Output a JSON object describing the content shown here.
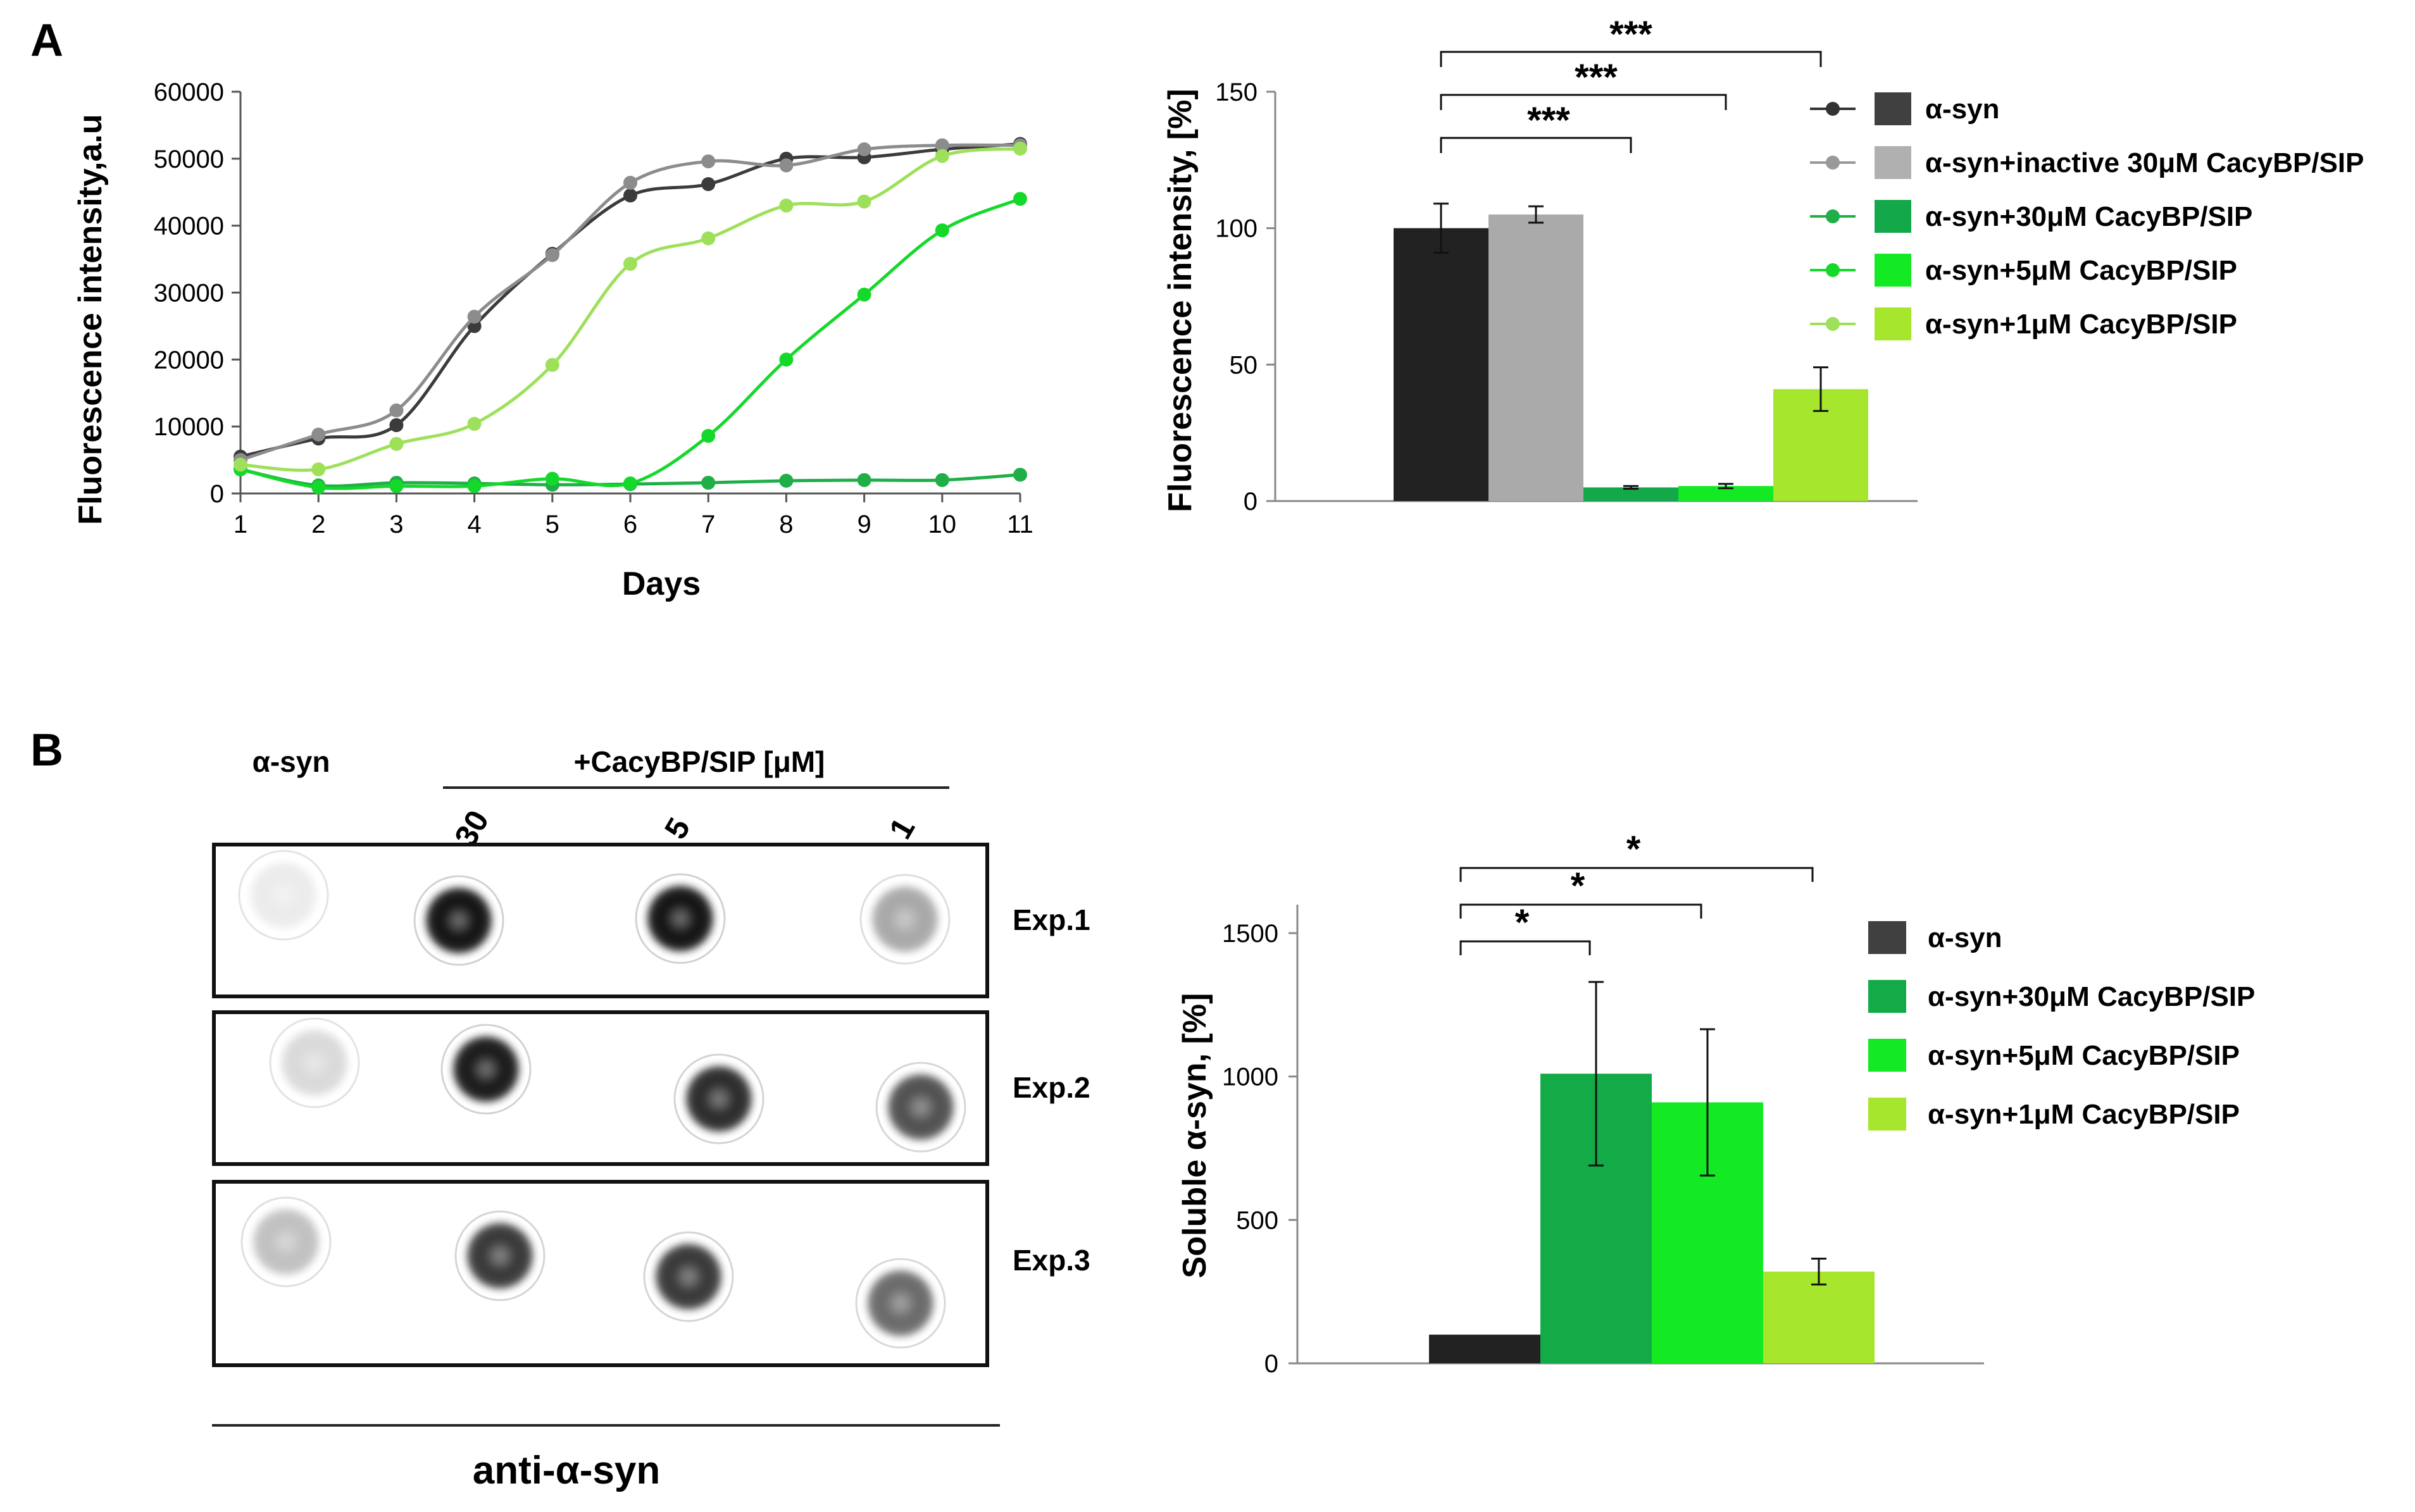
{
  "panels": {
    "a": {
      "label": "A"
    },
    "b": {
      "label": "B"
    }
  },
  "chart_data": [
    {
      "type": "line",
      "xlabel": "Days",
      "ylabel": "Fluorescence intensity,a.u",
      "xlim": [
        1,
        11
      ],
      "ylim": [
        0,
        60000
      ],
      "x": [
        1,
        2,
        3,
        4,
        5,
        6,
        7,
        8,
        9,
        10,
        11
      ],
      "x_ticks": [
        "1",
        "2",
        "3",
        "4",
        "5",
        "6",
        "7",
        "8",
        "9",
        "10",
        "11"
      ],
      "y_ticks": [
        "0",
        "10000",
        "20000",
        "30000",
        "40000",
        "50000",
        "60000"
      ],
      "series": [
        {
          "name": "α-syn",
          "color": "#3b3b3b",
          "values": [
            5500,
            8200,
            10200,
            25000,
            35800,
            44500,
            46200,
            50000,
            50200,
            51400,
            52200
          ]
        },
        {
          "name": "α-syn+inactive 30μM CacyBP/SIP",
          "color": "#8c8c8c",
          "values": [
            5000,
            8800,
            12400,
            26400,
            35600,
            46400,
            49600,
            49000,
            51400,
            52000,
            52000
          ]
        },
        {
          "name": "α-syn+30μM CacyBP/SIP",
          "color": "#1fae48",
          "values": [
            3600,
            1200,
            1600,
            1500,
            1300,
            1400,
            1600,
            1900,
            2000,
            2000,
            2800
          ]
        },
        {
          "name": "α-syn+5μM CacyBP/SIP",
          "color": "#14d92a",
          "values": [
            3600,
            900,
            1100,
            1100,
            2200,
            1500,
            8600,
            20000,
            29700,
            39300,
            44000
          ]
        },
        {
          "name": "α-syn+1μM CacyBP/SIP",
          "color": "#9ee05a",
          "values": [
            4300,
            3600,
            7400,
            10400,
            19200,
            34300,
            38100,
            43000,
            43600,
            50400,
            51500
          ]
        }
      ]
    },
    {
      "type": "bar",
      "ylabel": "Fluorescence intensity, [%]",
      "ylim": [
        0,
        150
      ],
      "y_ticks": [
        "0",
        "50",
        "100",
        "150"
      ],
      "series": [
        {
          "name": "α-syn",
          "color": "#222222",
          "value": 100,
          "error": 9
        },
        {
          "name": "α-syn+inactive 30μM CacyBP/SIP",
          "color": "#aaaaaa",
          "value": 105,
          "error": 3
        },
        {
          "name": "α-syn+30μM CacyBP/SIP",
          "color": "#13a84a",
          "value": 5,
          "error": 0.5
        },
        {
          "name": "α-syn+5μM CacyBP/SIP",
          "color": "#14ea24",
          "value": 5.5,
          "error": 0.8
        },
        {
          "name": "α-syn+1μM CacyBP/SIP",
          "color": "#a6e62c",
          "value": 41,
          "error": 8
        }
      ],
      "significance": [
        {
          "from": 0,
          "to": 2,
          "label": "***"
        },
        {
          "from": 0,
          "to": 3,
          "label": "***"
        },
        {
          "from": 0,
          "to": 4,
          "label": "***"
        }
      ],
      "legend": {
        "placement": "right",
        "items": [
          {
            "label": "α-syn",
            "line_color": "#333333",
            "swatch_color": "#404040"
          },
          {
            "label": "α-syn+inactive 30μM CacyBP/SIP",
            "line_color": "#999999",
            "swatch_color": "#b0b0b0"
          },
          {
            "label": "α-syn+30μM CacyBP/SIP",
            "line_color": "#1fae48",
            "swatch_color": "#13a84a"
          },
          {
            "label": "α-syn+5μM CacyBP/SIP",
            "line_color": "#14d92a",
            "swatch_color": "#14ea24"
          },
          {
            "label": "α-syn+1μM CacyBP/SIP",
            "line_color": "#9ee05a",
            "swatch_color": "#a6e62c"
          }
        ]
      }
    },
    {
      "type": "bar",
      "ylabel": "Soluble α-syn, [%]",
      "ylim": [
        0,
        1500
      ],
      "y_ticks": [
        "0",
        "500",
        "1000",
        "1500"
      ],
      "series": [
        {
          "name": "α-syn",
          "color": "#222222",
          "value": 100,
          "error": 0
        },
        {
          "name": "α-syn+30μM CacyBP/SIP",
          "color": "#13ab48",
          "value": 1010,
          "error": 320
        },
        {
          "name": "α-syn+5μM CacyBP/SIP",
          "color": "#14ea24",
          "value": 910,
          "error": 255
        },
        {
          "name": "α-syn+1μM CacyBP/SIP",
          "color": "#a6e62c",
          "value": 320,
          "error": 45
        }
      ],
      "significance": [
        {
          "from": 0,
          "to": 1,
          "label": "*"
        },
        {
          "from": 0,
          "to": 2,
          "label": "*"
        },
        {
          "from": 0,
          "to": 3,
          "label": "*"
        }
      ],
      "legend": {
        "placement": "right",
        "items": [
          {
            "label": "α-syn",
            "swatch_color": "#404040"
          },
          {
            "label": "α-syn+30μM CacyBP/SIP",
            "swatch_color": "#13ab48"
          },
          {
            "label": "α-syn+5μM CacyBP/SIP",
            "swatch_color": "#14ea24"
          },
          {
            "label": "α-syn+1μM CacyBP/SIP",
            "swatch_color": "#a6e62c"
          }
        ]
      }
    }
  ],
  "dot_blot": {
    "control_label": "α-syn",
    "treatment_label": "+CacyBP/SIP [μM]",
    "concentrations": [
      "30",
      "5",
      "1"
    ],
    "experiments": [
      {
        "label": "Exp.1",
        "intensity": [
          0.08,
          0.95,
          0.95,
          0.35
        ]
      },
      {
        "label": "Exp.2",
        "intensity": [
          0.15,
          0.92,
          0.85,
          0.7
        ]
      },
      {
        "label": "Exp.3",
        "intensity": [
          0.25,
          0.8,
          0.8,
          0.6
        ]
      }
    ],
    "antibody_label": "anti-α-syn"
  }
}
